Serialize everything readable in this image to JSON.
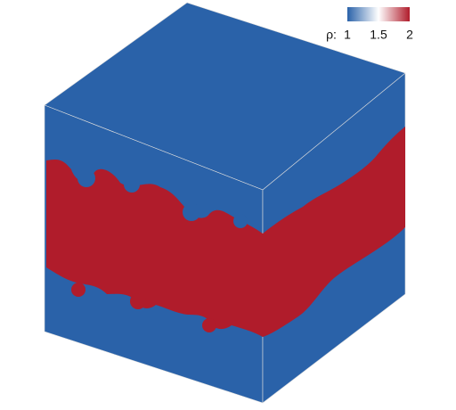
{
  "colorbar": {
    "label": "ρ:",
    "range": [
      1,
      2
    ],
    "ticks": [
      1,
      1.5,
      2
    ],
    "colors": [
      "#2a62a9",
      "#ffffff",
      "#b01c2b"
    ]
  }
}
